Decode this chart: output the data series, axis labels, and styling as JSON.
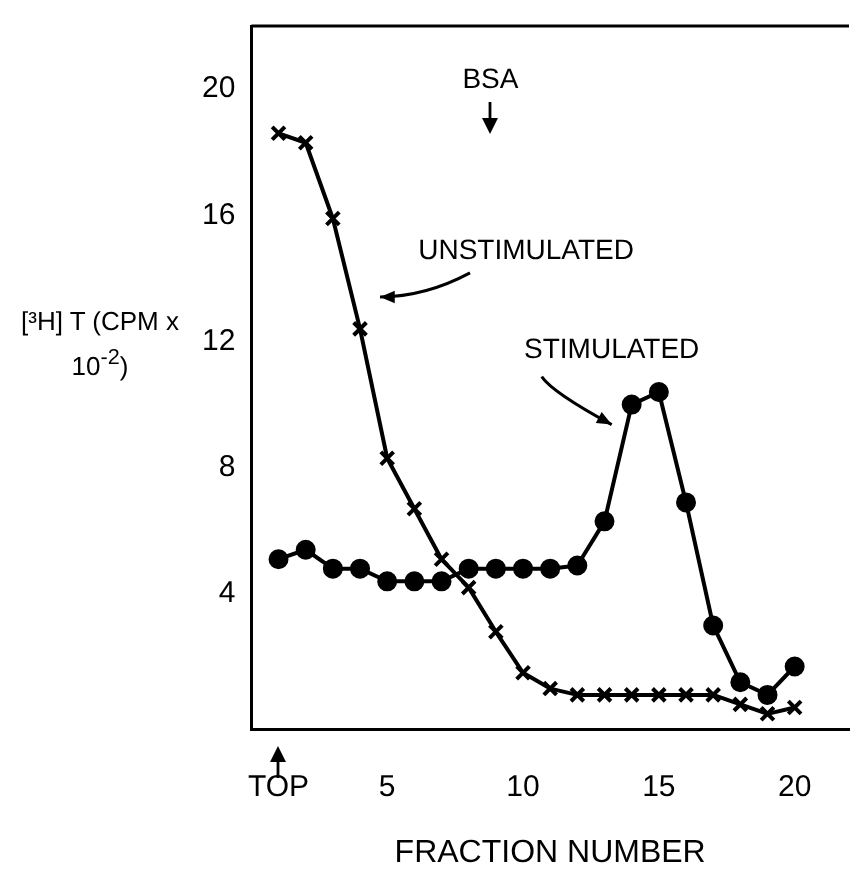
{
  "chart_data": {
    "type": "line",
    "xlabel": "FRACTION NUMBER",
    "ylabel": "[³H] T (CPM x 10$^{-2}$)",
    "x": [
      1,
      2,
      3,
      4,
      5,
      6,
      7,
      8,
      9,
      10,
      11,
      12,
      13,
      14,
      15,
      16,
      17,
      18,
      19,
      20
    ],
    "series": [
      {
        "name": "UNSTIMULATED",
        "color": "#000000",
        "marker": "cross",
        "values": [
          18.6,
          18.3,
          15.9,
          12.4,
          8.3,
          6.7,
          5.1,
          4.2,
          2.8,
          1.5,
          1.0,
          0.8,
          0.8,
          0.8,
          0.8,
          0.8,
          0.8,
          0.5,
          0.2,
          0.4
        ]
      },
      {
        "name": "STIMULATED",
        "color": "#000000",
        "marker": "circle",
        "values": [
          5.1,
          5.4,
          4.8,
          4.8,
          4.4,
          4.4,
          4.4,
          4.8,
          4.8,
          4.8,
          4.8,
          4.9,
          6.3,
          10.0,
          10.4,
          6.9,
          3.0,
          1.2,
          0.8,
          1.7
        ]
      }
    ],
    "annotations": [
      "BSA"
    ],
    "xlim": [
      0,
      22
    ],
    "xticks": [
      {
        "value": 1,
        "label": "TOP"
      },
      5,
      10,
      15,
      20
    ],
    "ylim": [
      -0.3,
      22
    ],
    "yticks": [
      4,
      8,
      12,
      16,
      20
    ],
    "grid": false,
    "legend": false,
    "line_style": "solid"
  }
}
